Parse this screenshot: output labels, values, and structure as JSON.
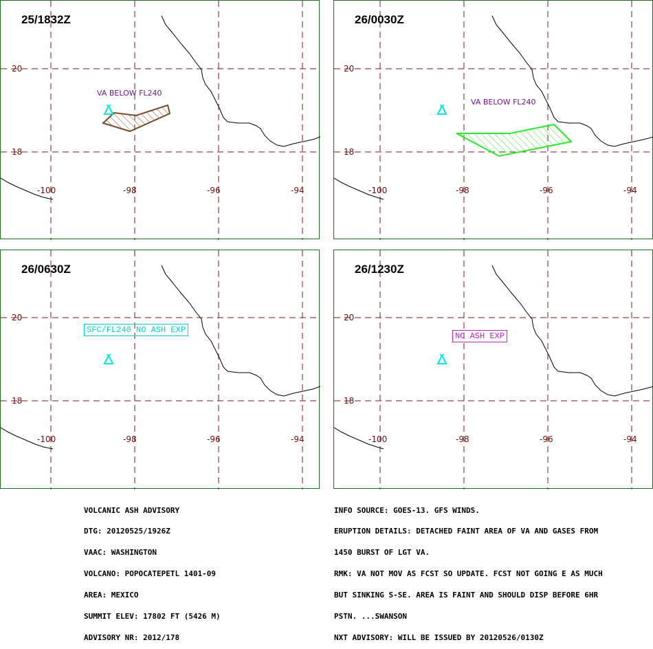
{
  "panels": [
    {
      "title": "25/1832Z",
      "note": "VA BELOW FL240",
      "boxed": ""
    },
    {
      "title": "26/0030Z",
      "note": "VA BELOW FL240",
      "boxed": ""
    },
    {
      "title": "26/0630Z",
      "note": "",
      "boxed": "SFC/FL240 NO ASH EXP"
    },
    {
      "title": "26/1230Z",
      "note": "",
      "boxed": "NO ASH EXP"
    }
  ],
  "grid_labels": {
    "lat": [
      "20",
      "18"
    ],
    "lon": [
      "-100",
      "-98",
      "-96",
      "-94"
    ]
  },
  "colors": {
    "grid": "#7a1a1a",
    "frame": "#1f6e1f",
    "volcano": "#00e5e5",
    "ash_25_1832": "#7a4a2a",
    "ash_26_0030": "#2ee82e",
    "note": "#6b1a7a",
    "box_cyan": "#00d0d0",
    "box_magenta": "#c020c0"
  },
  "icons": {
    "volcano": "volcano-icon"
  },
  "advisory_left": [
    "VOLCANIC ASH ADVISORY",
    "DTG: 20120525/1926Z",
    "VAAC: WASHINGTON",
    "VOLCANO: POPOCATEPETL 1401-09",
    "AREA: MEXICO",
    "SUMMIT ELEV: 17802 FT (5426 M)",
    "ADVISORY NR: 2012/178"
  ],
  "advisory_right": [
    "INFO SOURCE: GOES-13. GFS WINDS.",
    "ERUPTION DETAILS: DETACHED FAINT AREA OF VA AND GASES FROM",
    "1450 BURST OF LGT VA.",
    "RMK: VA NOT MOV AS FCST SO UPDATE. FCST NOT GOING E AS MUCH",
    "BUT SINKING S-SE. AREA IS FAINT AND SHOULD DISP BEFORE 6HR",
    "PSTN. ...SWANSON",
    "NXT ADVISORY: WILL BE ISSUED BY 20120526/0130Z"
  ]
}
